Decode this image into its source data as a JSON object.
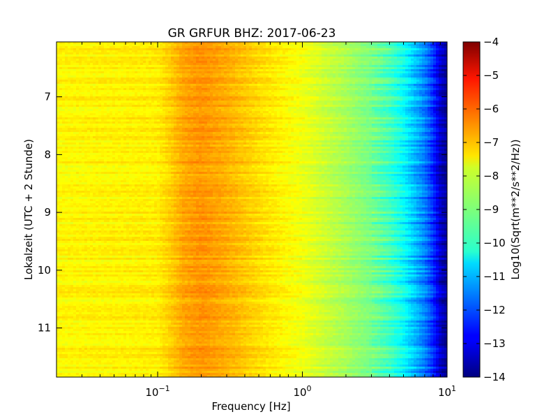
{
  "chart_data": {
    "type": "heatmap",
    "title": "GR GRFUR BHZ: 2017-06-23",
    "xlabel": "Frequency [Hz]",
    "ylabel": "Lokalzeit (UTC + 2 Stunde)",
    "x_scale": "log",
    "x_range_hz": [
      0.02,
      10
    ],
    "x_ticks": [
      {
        "value": 0.1,
        "base": "10",
        "exp": "−1"
      },
      {
        "value": 1,
        "base": "10",
        "exp": "0"
      },
      {
        "value": 10,
        "base": "10",
        "exp": "1"
      }
    ],
    "y_range_hours": [
      6.05,
      11.85
    ],
    "y_inverted": true,
    "y_ticks": [
      "7",
      "8",
      "9",
      "10",
      "11"
    ],
    "colorbar": {
      "label": "Log10(Sqrt(m**2/s**2/Hz))",
      "colormap": "jet",
      "range": [
        -14,
        -4
      ],
      "ticks": [
        "−4",
        "−5",
        "−6",
        "−7",
        "−8",
        "−9",
        "−10",
        "−11",
        "−12",
        "−13",
        "−14"
      ]
    },
    "profile": {
      "frequency_hz": [
        0.02,
        0.05,
        0.1,
        0.12,
        0.15,
        0.2,
        0.3,
        0.5,
        0.8,
        1.0,
        2.0,
        3.0,
        4.0,
        5.0,
        6.0,
        7.0,
        8.0,
        9.0,
        10.0
      ],
      "value": [
        -7.7,
        -7.65,
        -7.6,
        -7.3,
        -6.9,
        -6.7,
        -6.95,
        -7.4,
        -7.75,
        -7.9,
        -8.6,
        -9.1,
        -9.6,
        -10.2,
        -10.9,
        -11.5,
        -12.3,
        -13.3,
        -13.8
      ]
    }
  }
}
